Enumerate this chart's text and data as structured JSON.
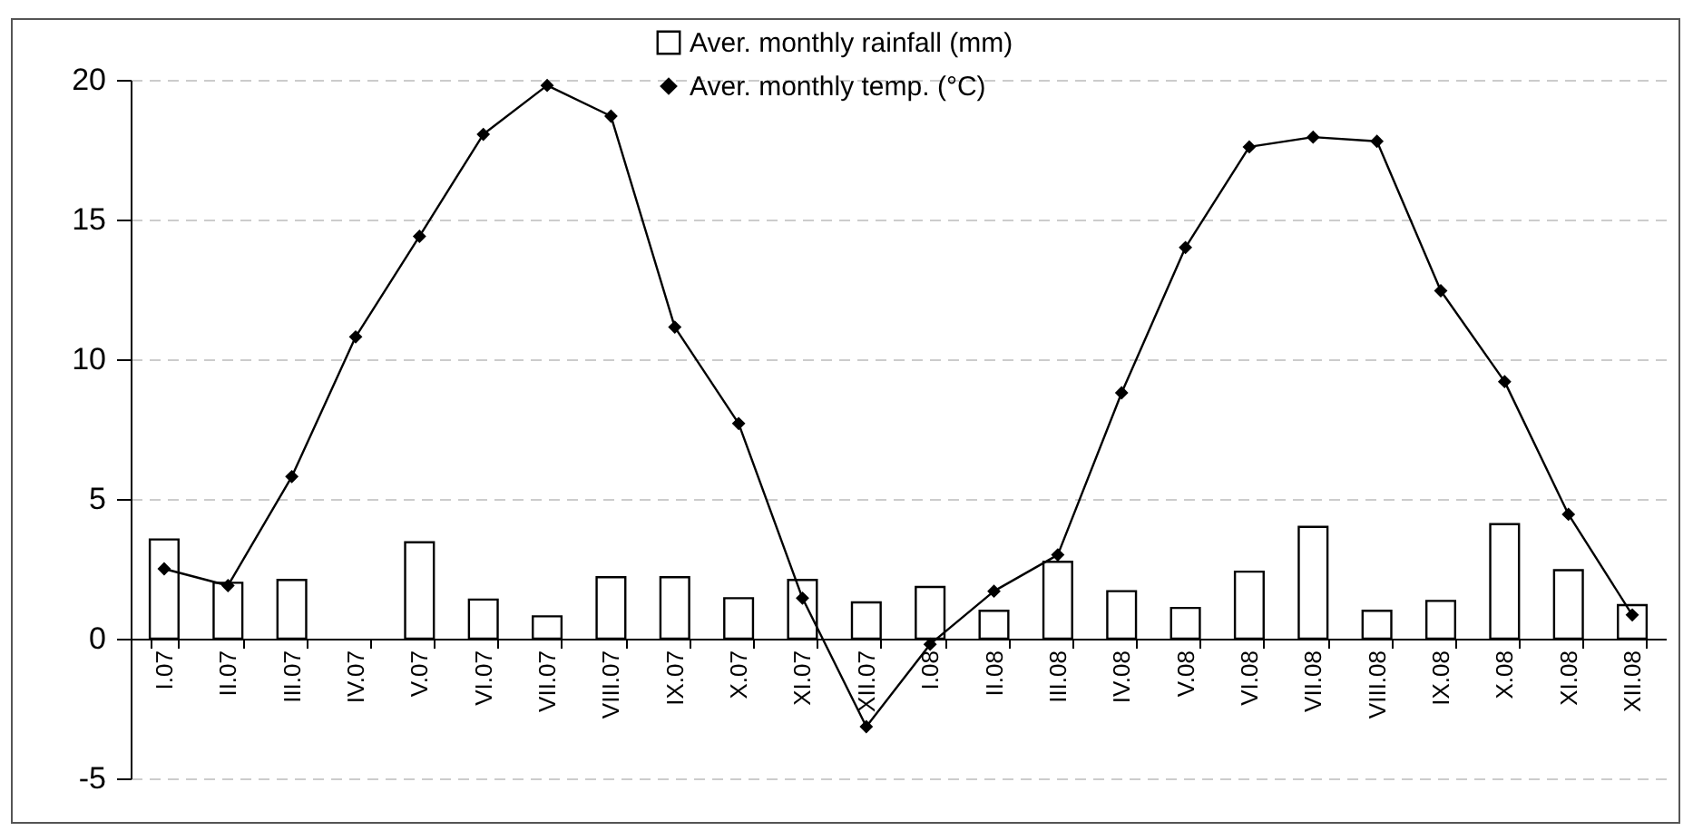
{
  "chart_data": {
    "type": "bar",
    "categories": [
      "I.07",
      "II.07",
      "III.07",
      "IV.07",
      "V.07",
      "VI.07",
      "VII.07",
      "VIII.07",
      "IX.07",
      "X.07",
      "XI.07",
      "XII.07",
      "I.08",
      "II.08",
      "III.08",
      "IV.08",
      "V.08",
      "VI.08",
      "VII.08",
      "VIII.08",
      "IX.08",
      "X.08",
      "XI.08",
      "XII.08"
    ],
    "series": [
      {
        "name": "Aver. monthly rainfall (mm)",
        "color": "#ffffff",
        "values": [
          3.55,
          2.0,
          2.1,
          null,
          3.45,
          1.4,
          0.8,
          2.2,
          2.2,
          1.45,
          2.1,
          1.3,
          1.85,
          1.0,
          2.75,
          1.7,
          1.1,
          2.4,
          4.0,
          1.0,
          1.35,
          4.1,
          2.45,
          1.2
        ]
      },
      {
        "name": "Aver. monthly temp. (°C)",
        "type": "line",
        "color": "#000000",
        "marker": "diamond",
        "values": [
          2.5,
          1.9,
          5.8,
          10.8,
          14.4,
          18.05,
          19.8,
          18.7,
          11.15,
          7.7,
          1.45,
          -3.15,
          -0.2,
          1.7,
          3.0,
          8.8,
          14.0,
          17.6,
          17.95,
          17.8,
          12.45,
          9.2,
          4.45,
          0.85
        ]
      }
    ],
    "ylim": [
      -5,
      20
    ],
    "yticks": [
      -5,
      0,
      5,
      10,
      15,
      20
    ],
    "grid": "y",
    "legend": "top"
  }
}
